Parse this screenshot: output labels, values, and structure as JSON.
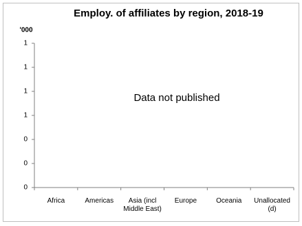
{
  "chart_data": {
    "type": "bar",
    "title": "Employ. of affiliates by region, 2018-19",
    "y_unit": "'000",
    "annotation": "Data not published",
    "categories": [
      "Africa",
      "Americas",
      "Asia (incl Middle East)",
      "Europe",
      "Oceania",
      "Unallocated (d)"
    ],
    "ylim": [
      0,
      1.2
    ],
    "yticks": [
      0,
      {
        "value": 0.2,
        "label": "0"
      },
      {
        "value": 0.4,
        "label": "0"
      },
      {
        "value": 0.6,
        "label": "1"
      },
      {
        "value": 0.8,
        "label": "1"
      },
      1,
      {
        "value": 1.2,
        "label": "1"
      }
    ],
    "grid": false,
    "axis_color": "#7f7f7f"
  }
}
